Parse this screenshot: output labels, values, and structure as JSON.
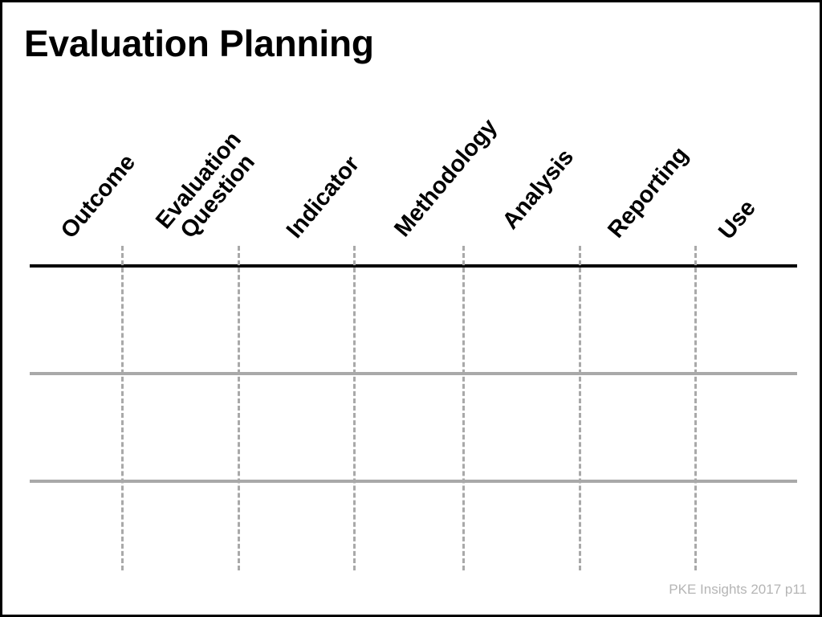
{
  "slide": {
    "title": "Evaluation Planning",
    "footer": "PKE Insights 2017 p11"
  },
  "columns": [
    {
      "label": "Outcome"
    },
    {
      "label": "Evaluation\nQuestion"
    },
    {
      "label": "Indicator"
    },
    {
      "label": "Methodology"
    },
    {
      "label": "Analysis"
    },
    {
      "label": "Reporting"
    },
    {
      "label": "Use"
    }
  ],
  "grid": {
    "row_count": 3,
    "column_count": 7,
    "rows": [
      [
        "",
        "",
        "",
        "",
        "",
        "",
        ""
      ],
      [
        "",
        "",
        "",
        "",
        "",
        "",
        ""
      ],
      [
        "",
        "",
        "",
        "",
        "",
        "",
        ""
      ]
    ]
  },
  "colors": {
    "header_rule": "#000000",
    "row_rule": "#a9a9a9",
    "column_divider": "#a9a9a9",
    "footer_text": "#b5b5b5",
    "frame_border": "#000000"
  }
}
